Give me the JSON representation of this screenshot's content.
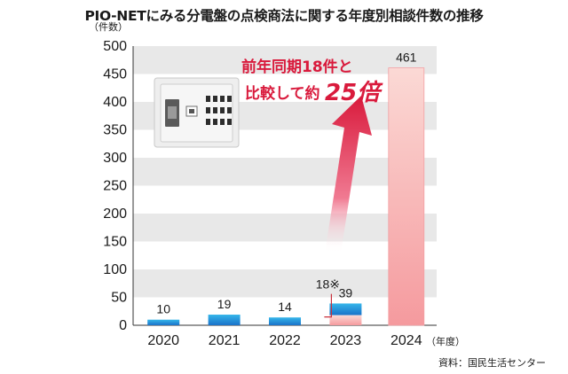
{
  "chart_data": {
    "type": "bar",
    "title": "PIO-NETにみる分電盤の点検商法に関する年度別相談件数の推移",
    "ylabel": "（件数）",
    "xunit": "（年度）",
    "yticks": [
      "0",
      "50",
      "100",
      "150",
      "200",
      "250",
      "300",
      "350",
      "400",
      "450",
      "500"
    ],
    "ylim": [
      0,
      500
    ],
    "grid": "alternating horizontal bands",
    "categories": [
      "2020",
      "2021",
      "2022",
      "2023",
      "2024"
    ],
    "values": [
      10,
      19,
      14,
      39,
      461
    ],
    "value_labels": [
      "10",
      "19",
      "14",
      "39",
      "461"
    ],
    "same_period_2023": {
      "value": 18,
      "label": "18※"
    },
    "annotation": {
      "line1": "前年同期18件と",
      "line2_prefix": "比較して約",
      "line2_emph": "25倍"
    },
    "source": "資料：国民生活センター",
    "colors": {
      "bar_blue_top": "#35b6ea",
      "bar_blue_bottom": "#1a72c9",
      "bar_pink_top": "#fbd9d5",
      "bar_pink_bottom": "#f59a9e",
      "accent_red": "#d91a3c",
      "band_gray": "#e8e8e8"
    }
  }
}
